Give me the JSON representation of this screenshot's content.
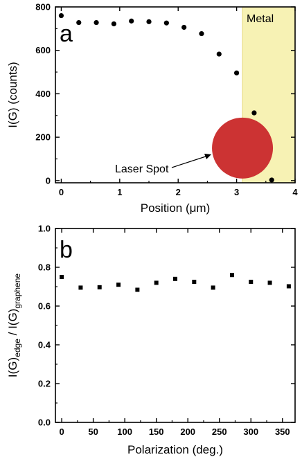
{
  "figure": {
    "panels": [
      "a",
      "b"
    ]
  },
  "chart_data": [
    {
      "type": "scatter",
      "panel_label": "a",
      "xlabel": "Position (μm)",
      "ylabel": "I(G) (counts)",
      "xlim": [
        -0.1,
        4
      ],
      "ylim": [
        -10,
        800
      ],
      "xticks": [
        0,
        1,
        2,
        3,
        4
      ],
      "yticks": [
        0,
        200,
        400,
        600,
        800
      ],
      "x": [
        0,
        0.3,
        0.6,
        0.9,
        1.2,
        1.5,
        1.8,
        2.1,
        2.4,
        2.7,
        3.0,
        3.3,
        3.6
      ],
      "y": [
        760,
        728,
        728,
        722,
        735,
        732,
        726,
        706,
        677,
        583,
        496,
        312,
        3
      ],
      "annotations": {
        "region_label": "Metal",
        "region_x_start": 3.1,
        "region_color": "#f7f2b4",
        "spot_label": "Laser Spot",
        "spot_center": [
          3.1,
          150
        ],
        "spot_color": "#cc3333"
      },
      "grid": false
    },
    {
      "type": "scatter",
      "panel_label": "b",
      "xlabel": "Polarization (deg.)",
      "ylabel_main1": "I(G)",
      "ylabel_sub1": "edge",
      "ylabel_main2": " / I(G)",
      "ylabel_sub2": "graphene",
      "xlim": [
        -10,
        370
      ],
      "ylim": [
        0,
        1.0
      ],
      "xticks": [
        0,
        50,
        100,
        150,
        200,
        250,
        300,
        350
      ],
      "yticks": [
        0.0,
        0.2,
        0.4,
        0.6,
        0.8,
        1.0
      ],
      "x": [
        0,
        30,
        60,
        90,
        120,
        150,
        180,
        210,
        240,
        270,
        300,
        330,
        360
      ],
      "y": [
        0.75,
        0.695,
        0.697,
        0.71,
        0.684,
        0.72,
        0.74,
        0.725,
        0.695,
        0.76,
        0.725,
        0.72,
        0.702
      ],
      "grid": false
    }
  ]
}
